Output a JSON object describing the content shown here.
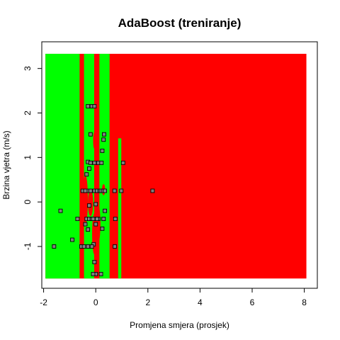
{
  "chart_data": {
    "type": "scatter",
    "title": "AdaBoost (treniranje)",
    "xlabel": "Promjena smjera (prosjek)",
    "ylabel": "Brzina vjetra (m/s)",
    "xlim": [
      -2.07,
      8.5
    ],
    "ylim": [
      -1.94,
      3.6
    ],
    "xticks": [
      -2,
      0,
      2,
      4,
      6,
      8
    ],
    "xtick_labels": [
      "-2",
      "0",
      "2",
      "4",
      "6",
      "8"
    ],
    "yticks": [
      -1,
      0,
      1,
      2,
      3
    ],
    "ytick_labels": [
      "-1",
      "0",
      "1",
      "2",
      "3"
    ],
    "colors": {
      "class_green": "#00ff00",
      "class_red": "#ff0000",
      "point_fill": "#808080",
      "point_stroke": "#000000"
    },
    "decision_regions": {
      "extent": {
        "x": [
          -1.93,
          8.08
        ],
        "y": [
          -1.72,
          3.33
        ]
      },
      "background_class": "red",
      "bands": [
        {
          "class": "green",
          "x": [
            -1.93,
            -0.62
          ]
        },
        {
          "class": "green",
          "x": [
            -0.45,
            -0.06
          ]
        },
        {
          "class": "green",
          "x": [
            0.14,
            0.53
          ]
        },
        {
          "class": "green",
          "x": [
            0.86,
            0.98
          ],
          "y": [
            -1.72,
            1.43
          ]
        }
      ],
      "blobs": [
        {
          "class": "red",
          "x": [
            -0.5,
            -0.3
          ],
          "y": [
            -0.5,
            0.6
          ]
        },
        {
          "class": "red",
          "x": [
            -0.3,
            -0.1
          ],
          "y": [
            -0.32,
            0.28
          ]
        },
        {
          "class": "red",
          "x": [
            -0.1,
            0.02
          ],
          "y": [
            1.18,
            1.58
          ]
        },
        {
          "class": "red",
          "x": [
            -0.14,
            0.04
          ],
          "y": [
            -1.18,
            -0.25
          ]
        },
        {
          "class": "red",
          "x": [
            0.02,
            0.18
          ],
          "y": [
            -0.9,
            -0.08
          ]
        },
        {
          "class": "red",
          "x": [
            0.24,
            0.36
          ],
          "y": [
            0.15,
            0.4
          ]
        }
      ]
    },
    "points": [
      [
        -1.6,
        -1.0
      ],
      [
        -1.35,
        -0.2
      ],
      [
        -0.9,
        -0.85
      ],
      [
        -0.7,
        -0.38
      ],
      [
        -0.55,
        -1.0
      ],
      [
        -0.45,
        -1.0
      ],
      [
        -0.5,
        0.25
      ],
      [
        -0.35,
        -0.38
      ],
      [
        -0.3,
        0.25
      ],
      [
        -0.25,
        -0.38
      ],
      [
        -0.2,
        0.25
      ],
      [
        -0.15,
        -0.38
      ],
      [
        -0.1,
        -0.38
      ],
      [
        -0.05,
        0.25
      ],
      [
        0.05,
        0.25
      ],
      [
        0.1,
        -0.38
      ],
      [
        0.15,
        0.25
      ],
      [
        0.2,
        0.25
      ],
      [
        0.28,
        0.25
      ],
      [
        0.35,
        0.25
      ],
      [
        0.05,
        -0.38
      ],
      [
        -0.08,
        -0.95
      ],
      [
        -0.15,
        -1.0
      ],
      [
        -0.05,
        -1.35
      ],
      [
        0.0,
        -1.62
      ],
      [
        -0.1,
        -1.62
      ],
      [
        0.2,
        -1.62
      ],
      [
        -0.3,
        -1.0
      ],
      [
        -0.25,
        0.75
      ],
      [
        -0.3,
        0.9
      ],
      [
        -0.2,
        0.88
      ],
      [
        -0.05,
        0.88
      ],
      [
        0.1,
        0.88
      ],
      [
        0.22,
        0.88
      ],
      [
        0.25,
        1.15
      ],
      [
        0.3,
        1.4
      ],
      [
        0.32,
        1.52
      ],
      [
        -0.2,
        1.52
      ],
      [
        -0.3,
        2.15
      ],
      [
        -0.15,
        2.15
      ],
      [
        -0.05,
        2.15
      ],
      [
        -0.35,
        0.62
      ],
      [
        -0.4,
        0.25
      ],
      [
        0.0,
        -0.5
      ],
      [
        -0.25,
        -0.08
      ],
      [
        0.0,
        -0.05
      ],
      [
        -0.4,
        -0.5
      ],
      [
        -0.3,
        -0.62
      ],
      [
        0.25,
        -0.6
      ],
      [
        0.3,
        -0.38
      ],
      [
        0.35,
        -0.2
      ],
      [
        0.72,
        0.25
      ],
      [
        0.75,
        -0.38
      ],
      [
        0.73,
        -1.0
      ],
      [
        0.98,
        0.25
      ],
      [
        1.05,
        0.88
      ],
      [
        2.18,
        0.25
      ]
    ]
  }
}
